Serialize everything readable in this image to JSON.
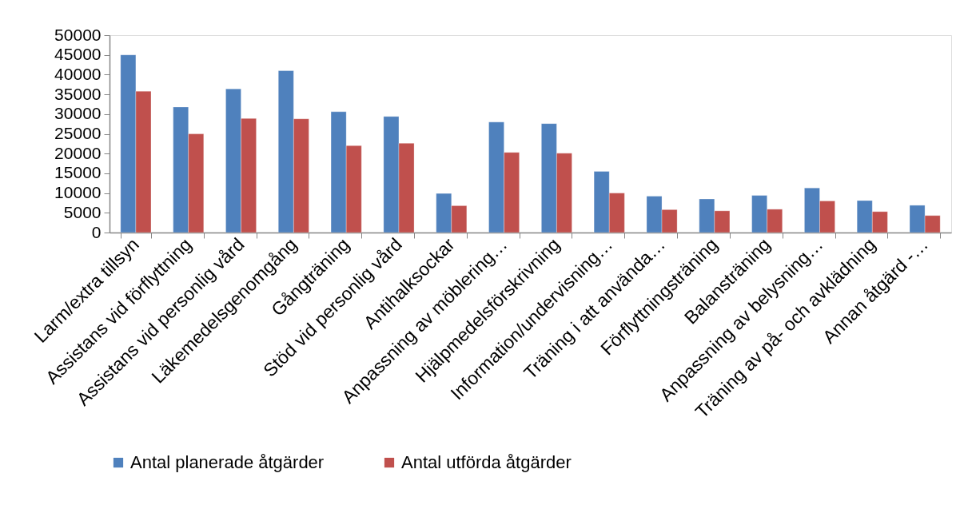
{
  "chart_data": {
    "type": "bar",
    "categories": [
      "Larm/extra tillsyn",
      "Assistans vid förflyttning",
      "Assistans vid personlig vård",
      "Läkemedelsgenomgång",
      "Gångträning",
      "Stöd vid personlig vård",
      "Antihalksockar",
      "Anpassning av möblering…",
      "Hjälpmedelsförskrivning",
      "Information/undervisning…",
      "Träning i att använda…",
      "Förflyttningsträning",
      "Balansträning",
      "Anpassning av belysning…",
      "Träning av på- och avklädning",
      "Annan åtgärd -…"
    ],
    "series": [
      {
        "name": "Antal planerade åtgärder",
        "color": "#4f81bd",
        "values": [
          45000,
          31800,
          36400,
          41000,
          30600,
          29400,
          9900,
          28000,
          27600,
          15500,
          9200,
          8500,
          9400,
          11300,
          8100,
          6900
        ]
      },
      {
        "name": "Antal utförda åtgärder",
        "color": "#c0504d",
        "values": [
          35800,
          25000,
          28900,
          28800,
          22000,
          22600,
          6800,
          20300,
          20100,
          10000,
          5800,
          5500,
          5900,
          8000,
          5300,
          4300
        ]
      }
    ],
    "ylim": [
      0,
      50000
    ],
    "yticks": [
      0,
      5000,
      10000,
      15000,
      20000,
      25000,
      30000,
      35000,
      40000,
      45000,
      50000
    ],
    "legend": "bottom"
  }
}
